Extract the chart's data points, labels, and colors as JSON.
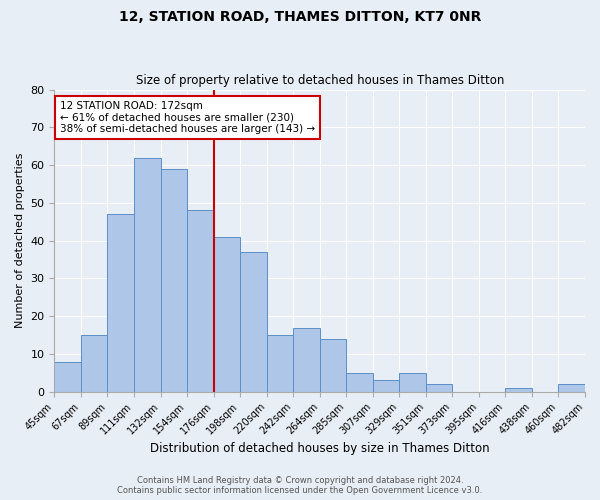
{
  "title": "12, STATION ROAD, THAMES DITTON, KT7 0NR",
  "subtitle": "Size of property relative to detached houses in Thames Ditton",
  "xlabel": "Distribution of detached houses by size in Thames Ditton",
  "ylabel": "Number of detached properties",
  "bin_labels": [
    "45sqm",
    "67sqm",
    "89sqm",
    "111sqm",
    "132sqm",
    "154sqm",
    "176sqm",
    "198sqm",
    "220sqm",
    "242sqm",
    "264sqm",
    "285sqm",
    "307sqm",
    "329sqm",
    "351sqm",
    "373sqm",
    "395sqm",
    "416sqm",
    "438sqm",
    "460sqm",
    "482sqm"
  ],
  "bar_values": [
    8,
    15,
    47,
    62,
    59,
    48,
    41,
    37,
    15,
    17,
    14,
    5,
    3,
    5,
    2,
    0,
    0,
    1,
    0,
    2
  ],
  "bar_color": "#aec6e8",
  "bar_edge_color": "#5b8fc9",
  "bg_color": "#e8eef5",
  "grid_color": "#ffffff",
  "vline_color": "#cc0000",
  "annotation_text": "12 STATION ROAD: 172sqm\n← 61% of detached houses are smaller (230)\n38% of semi-detached houses are larger (143) →",
  "annotation_box_color": "#cc0000",
  "ylim": [
    0,
    80
  ],
  "yticks": [
    0,
    10,
    20,
    30,
    40,
    50,
    60,
    70,
    80
  ],
  "footer1": "Contains HM Land Registry data © Crown copyright and database right 2024.",
  "footer2": "Contains public sector information licensed under the Open Government Licence v3.0."
}
